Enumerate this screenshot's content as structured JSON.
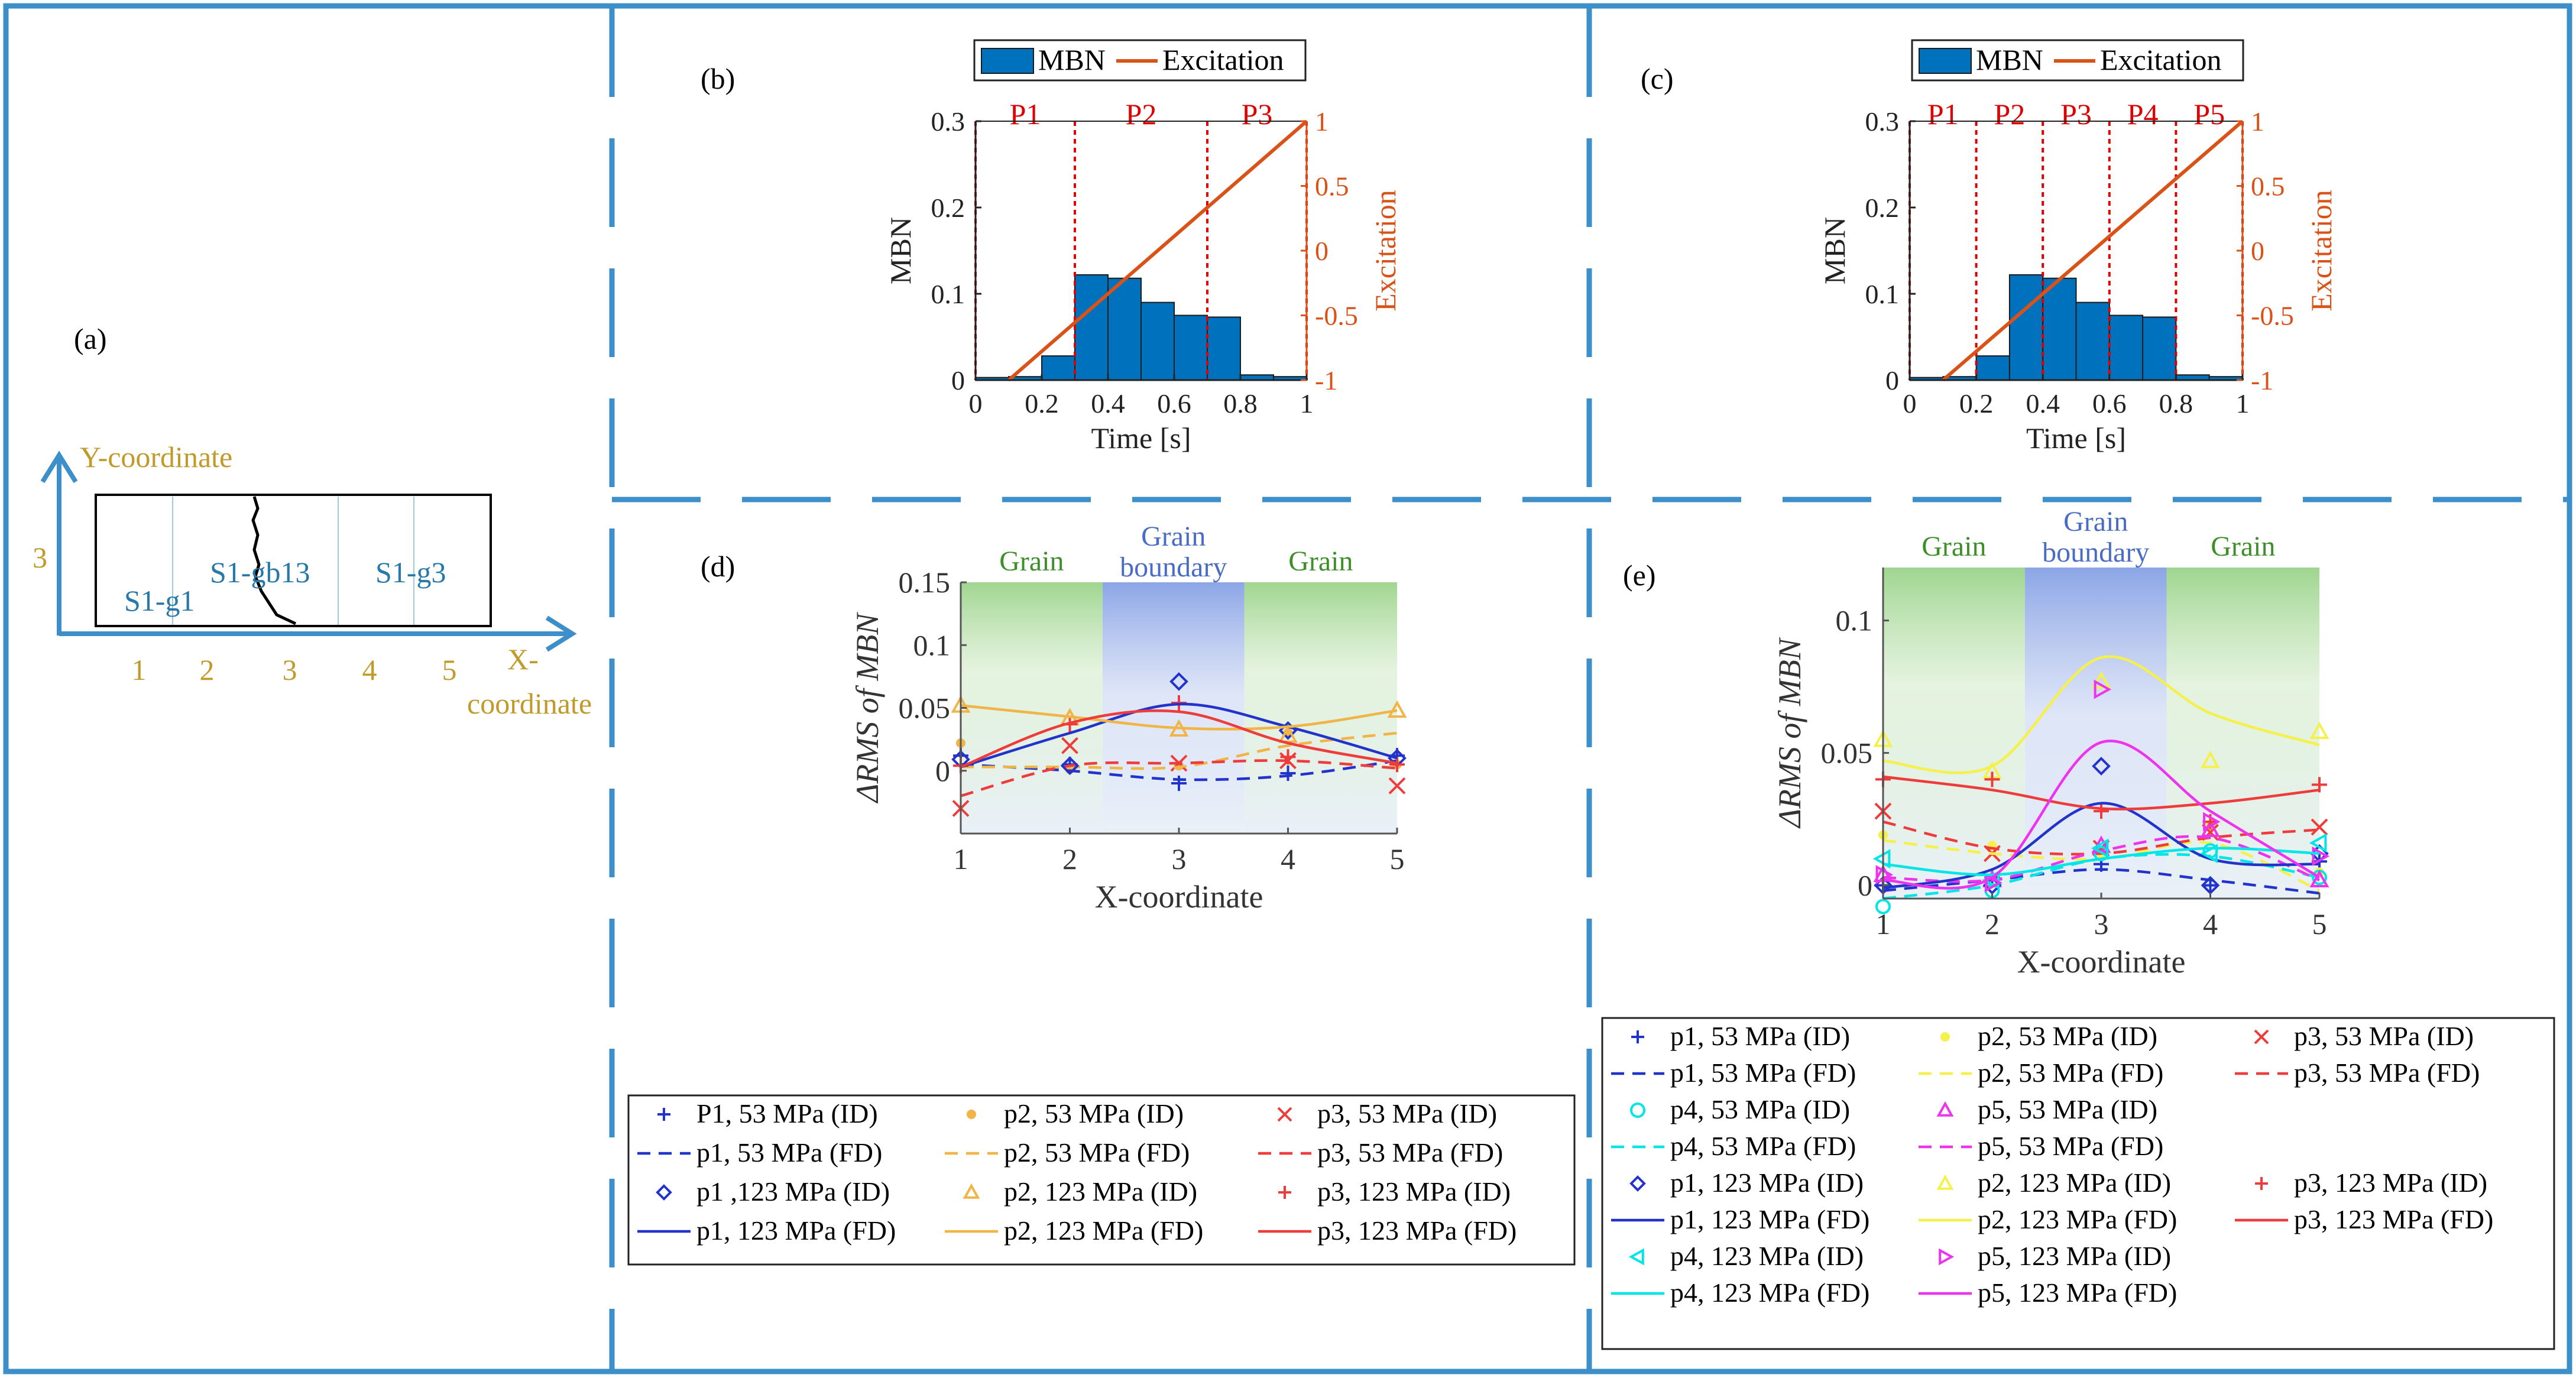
{
  "panel_labels": {
    "a": "(a)",
    "b": "(b)",
    "c": "(c)",
    "d": "(d)",
    "e": "(e)"
  },
  "panel_a": {
    "y_axis_label": "Y-coordinate",
    "y_tick": "3",
    "x_axis_label_line1": "X-",
    "x_axis_label_line2": "coordinate",
    "x_ticks": [
      "1",
      "2",
      "3",
      "4",
      "5"
    ],
    "region_labels": [
      "S1-g1",
      "S1-gb13",
      "S1-g3"
    ]
  },
  "colors": {
    "blue_line": "#3C8FC8",
    "bar": "#0072BD",
    "excitation": "#D95319",
    "p1": "#2233CC",
    "p2": "#F0B447",
    "p3": "#EE3B3B",
    "p2_e": "#F5F04A",
    "p4": "#00E5E5",
    "p5": "#EE33EE",
    "red_dashes": "#DD0000",
    "grain": "#6AA84F",
    "boundary": "#4A6CC4"
  },
  "chart_data": [
    {
      "id": "b",
      "type": "bar",
      "title": "",
      "legend": [
        "MBN",
        "Excitation"
      ],
      "xlabel": "Time [s]",
      "ylabel": "MBN",
      "y2label": "Excitation",
      "xlim": [
        0,
        1
      ],
      "ylim": [
        0,
        0.3
      ],
      "y2lim": [
        -1,
        1
      ],
      "xticks": [
        "0",
        "0.2",
        "0.4",
        "0.6",
        "0.8",
        "1"
      ],
      "yticks": [
        "0",
        "0.1",
        "0.2",
        "0.3"
      ],
      "y2ticks": [
        "-1",
        "-0.5",
        "0",
        "0.5",
        "1"
      ],
      "bin_edges": [
        0,
        0.1,
        0.2,
        0.3,
        0.4,
        0.5,
        0.6,
        0.7,
        0.8,
        0.9,
        1.0
      ],
      "values": [
        0.003,
        0.004,
        0.028,
        0.122,
        0.118,
        0.09,
        0.075,
        0.073,
        0.006,
        0.004
      ],
      "excitation": [
        [
          0.1,
          -1
        ],
        [
          1.0,
          1
        ]
      ],
      "partitions": [
        0,
        0.3,
        0.7,
        1.0
      ],
      "partition_labels": [
        "P1",
        "P2",
        "P3"
      ]
    },
    {
      "id": "c",
      "type": "bar",
      "title": "",
      "legend": [
        "MBN",
        "Excitation"
      ],
      "xlabel": "Time [s]",
      "ylabel": "MBN",
      "y2label": "Excitation",
      "xlim": [
        0,
        1
      ],
      "ylim": [
        0,
        0.3
      ],
      "y2lim": [
        -1,
        1
      ],
      "xticks": [
        "0",
        "0.2",
        "0.4",
        "0.6",
        "0.8",
        "1"
      ],
      "yticks": [
        "0",
        "0.1",
        "0.2",
        "0.3"
      ],
      "y2ticks": [
        "-1",
        "-0.5",
        "0",
        "0.5",
        "1"
      ],
      "bin_edges": [
        0,
        0.1,
        0.2,
        0.3,
        0.4,
        0.5,
        0.6,
        0.7,
        0.8,
        0.9,
        1.0
      ],
      "values": [
        0.003,
        0.004,
        0.028,
        0.122,
        0.118,
        0.09,
        0.075,
        0.073,
        0.006,
        0.004
      ],
      "excitation": [
        [
          0.1,
          -1
        ],
        [
          1.0,
          1
        ]
      ],
      "partitions": [
        0,
        0.2,
        0.4,
        0.6,
        0.8,
        1.0
      ],
      "partition_labels": [
        "P1",
        "P2",
        "P3",
        "P4",
        "P5"
      ]
    },
    {
      "id": "d",
      "type": "line",
      "xlabel": "X-coordinate",
      "ylabel": "ΔRMS of MBN",
      "xlim": [
        1,
        5
      ],
      "ylim": [
        -0.05,
        0.15
      ],
      "xticks": [
        "1",
        "2",
        "3",
        "4",
        "5"
      ],
      "yticks": [
        "0",
        "0.05",
        "0.1",
        "0.15"
      ],
      "regions": [
        {
          "label": "Grain",
          "from": 1,
          "to": 2.3,
          "kind": "grain"
        },
        {
          "label": "Grain boundary",
          "from": 2.3,
          "to": 3.6,
          "kind": "boundary"
        },
        {
          "label": "Grain",
          "from": 3.6,
          "to": 5,
          "kind": "grain"
        }
      ],
      "x": [
        1,
        2,
        3,
        4,
        5
      ],
      "series": [
        {
          "name": "P1, 53 MPa (ID)",
          "kind": "marker",
          "marker": "plus",
          "color": "p1",
          "values": [
            0.012,
            0.005,
            -0.01,
            -0.002,
            0.012
          ]
        },
        {
          "name": "p2, 53 MPa (ID)",
          "kind": "marker",
          "marker": "dot",
          "color": "p2",
          "values": [
            0.022,
            0.001,
            0.004,
            0.03,
            0.005
          ]
        },
        {
          "name": "p3, 53 MPa (ID)",
          "kind": "marker",
          "marker": "x",
          "color": "p3",
          "values": [
            -0.03,
            0.02,
            0.006,
            0.008,
            -0.012
          ]
        },
        {
          "name": "p1, 53 MPa (FD)",
          "kind": "curve",
          "dash": true,
          "color": "p1",
          "values": [
            0.005,
            0.0,
            -0.007,
            -0.004,
            0.008
          ]
        },
        {
          "name": "p2, 53 MPa (FD)",
          "kind": "curve",
          "dash": true,
          "color": "p2",
          "values": [
            0.003,
            0.003,
            0.003,
            0.02,
            0.03
          ]
        },
        {
          "name": "p3, 53 MPa (FD)",
          "kind": "curve",
          "dash": true,
          "color": "p3",
          "values": [
            -0.02,
            0.004,
            0.006,
            0.008,
            0.002
          ]
        },
        {
          "name": "p1 ,123 MPa (ID)",
          "kind": "marker",
          "marker": "diamond",
          "color": "p1",
          "values": [
            0.009,
            0.004,
            0.071,
            0.032,
            0.01
          ]
        },
        {
          "name": "p2, 123 MPa (ID)",
          "kind": "marker",
          "marker": "triangle",
          "color": "p2",
          "values": [
            0.052,
            0.042,
            0.033,
            0.028,
            0.048
          ]
        },
        {
          "name": "p3, 123 MPa (ID)",
          "kind": "marker",
          "marker": "plus",
          "color": "p3",
          "values": [
            0.004,
            0.037,
            0.054,
            0.011,
            0.005
          ]
        },
        {
          "name": "p1, 123 MPa (FD)",
          "kind": "curve",
          "dash": false,
          "color": "p1",
          "values": [
            0.003,
            0.03,
            0.053,
            0.035,
            0.01
          ]
        },
        {
          "name": "p2, 123 MPa (FD)",
          "kind": "curve",
          "dash": false,
          "color": "p2",
          "values": [
            0.052,
            0.043,
            0.034,
            0.035,
            0.048
          ]
        },
        {
          "name": "p3, 123 MPa (FD)",
          "kind": "curve",
          "dash": false,
          "color": "p3",
          "values": [
            0.003,
            0.038,
            0.047,
            0.022,
            0.006
          ]
        }
      ]
    },
    {
      "id": "e",
      "type": "line",
      "xlabel": "X-coordinate",
      "ylabel": "ΔRMS of MBN",
      "xlim": [
        1,
        5
      ],
      "ylim": [
        -0.005,
        0.12
      ],
      "xticks": [
        "1",
        "2",
        "3",
        "4",
        "5"
      ],
      "yticks": [
        "0",
        "0.05",
        "0.1"
      ],
      "regions": [
        {
          "label": "Grain",
          "from": 1,
          "to": 2.3,
          "kind": "grain"
        },
        {
          "label": "Grain boundary",
          "from": 2.3,
          "to": 3.6,
          "kind": "boundary"
        },
        {
          "label": "Grain",
          "from": 3.6,
          "to": 5,
          "kind": "grain"
        }
      ],
      "x": [
        1,
        2,
        3,
        4,
        5
      ],
      "series": [
        {
          "name": "p1, 53 MPa (ID)",
          "kind": "marker",
          "marker": "plus",
          "color": "p1",
          "values": [
            0.0,
            0.003,
            0.008,
            0.0,
            0.009
          ]
        },
        {
          "name": "p2, 53 MPa (ID)",
          "kind": "marker",
          "marker": "dot",
          "color": "p2_e",
          "values": [
            0.019,
            0.015,
            0.012,
            0.023,
            0.005
          ]
        },
        {
          "name": "p3, 53 MPa (ID)",
          "kind": "marker",
          "marker": "x",
          "color": "p3",
          "values": [
            0.028,
            0.012,
            0.014,
            0.02,
            0.022
          ]
        },
        {
          "name": "p1, 53 MPa (FD)",
          "kind": "curve",
          "dash": true,
          "color": "p1",
          "values": [
            -0.002,
            0.002,
            0.006,
            0.002,
            -0.003
          ]
        },
        {
          "name": "p2, 53 MPa (FD)",
          "kind": "curve",
          "dash": true,
          "color": "p2_e",
          "values": [
            0.017,
            0.012,
            0.01,
            0.016,
            -0.002
          ]
        },
        {
          "name": "p3, 53 MPa (FD)",
          "kind": "curve",
          "dash": true,
          "color": "p3",
          "values": [
            0.024,
            0.014,
            0.012,
            0.018,
            0.021
          ]
        },
        {
          "name": "p4, 53 MPa (ID)",
          "kind": "marker",
          "marker": "circle",
          "color": "p4",
          "values": [
            -0.008,
            -0.002,
            0.012,
            0.013,
            0.003
          ]
        },
        {
          "name": "p5, 53 MPa (ID)",
          "kind": "marker",
          "marker": "triangle",
          "color": "p5",
          "values": [
            0.004,
            0.002,
            0.015,
            0.021,
            0.002
          ]
        },
        {
          "name": "p4, 53 MPa (FD)",
          "kind": "curve",
          "dash": true,
          "color": "p4",
          "values": [
            -0.005,
            0.0,
            0.01,
            0.011,
            0.003
          ]
        },
        {
          "name": "p5, 53 MPa (FD)",
          "kind": "curve",
          "dash": true,
          "color": "p5",
          "values": [
            0.003,
            0.002,
            0.013,
            0.018,
            0.002
          ]
        },
        {
          "name": "p1, 123 MPa (ID)",
          "kind": "marker",
          "marker": "diamond",
          "color": "p1",
          "values": [
            0.0,
            0.0,
            0.045,
            0.0,
            0.012
          ]
        },
        {
          "name": "p2, 123 MPa (ID)",
          "kind": "marker",
          "marker": "triangle",
          "color": "p2_e",
          "values": [
            0.055,
            0.043,
            0.077,
            0.047,
            0.058
          ]
        },
        {
          "name": "p3, 123 MPa (ID)",
          "kind": "marker",
          "marker": "plus",
          "color": "p3",
          "values": [
            0.04,
            0.04,
            0.028,
            0.024,
            0.038
          ]
        },
        {
          "name": "p1, 123 MPa (FD)",
          "kind": "curve",
          "dash": false,
          "color": "p1",
          "values": [
            -0.001,
            0.006,
            0.031,
            0.01,
            0.008
          ]
        },
        {
          "name": "p2, 123 MPa (FD)",
          "kind": "curve",
          "dash": false,
          "color": "p2_e",
          "values": [
            0.047,
            0.045,
            0.086,
            0.065,
            0.053
          ]
        },
        {
          "name": "p3, 123 MPa (FD)",
          "kind": "curve",
          "dash": false,
          "color": "p3",
          "values": [
            0.041,
            0.036,
            0.029,
            0.031,
            0.036
          ]
        },
        {
          "name": "p4, 123 MPa (ID)",
          "kind": "marker",
          "marker": "triangle-left",
          "color": "p4",
          "values": [
            0.01,
            0.002,
            0.014,
            0.012,
            0.016
          ]
        },
        {
          "name": "p5, 123 MPa (ID)",
          "kind": "marker",
          "marker": "triangle-right",
          "color": "p5",
          "values": [
            0.004,
            0.001,
            0.074,
            0.024,
            0.011
          ]
        },
        {
          "name": "p4, 123 MPa (FD)",
          "kind": "curve",
          "dash": false,
          "color": "p4",
          "values": [
            0.008,
            0.004,
            0.01,
            0.014,
            0.012
          ]
        },
        {
          "name": "p5, 123 MPa (FD)",
          "kind": "curve",
          "dash": false,
          "color": "p5",
          "values": [
            0.002,
            0.003,
            0.054,
            0.028,
            0.003
          ]
        }
      ]
    }
  ]
}
